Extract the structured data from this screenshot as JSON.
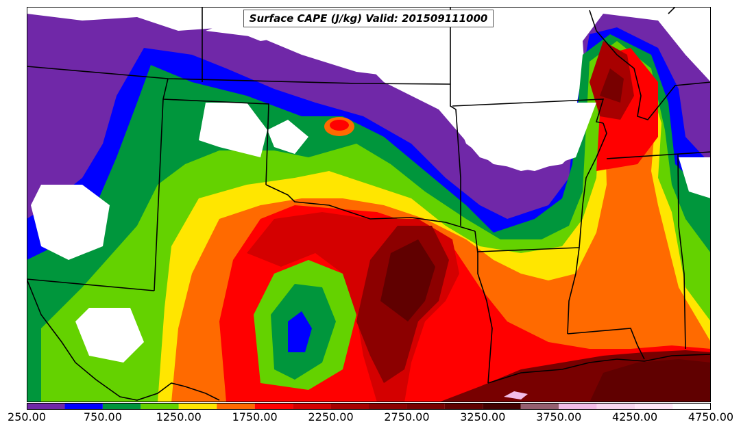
{
  "title": "Surface CAPE (J/kg) Valid: 201509111000",
  "colorbar": {
    "levels": [
      250,
      500,
      750,
      1000,
      1250,
      1500,
      1750,
      2000,
      2250,
      2500,
      2750,
      3000,
      3250,
      3500,
      3750,
      4000,
      4250,
      4500,
      4750
    ],
    "colors": [
      "#7028a8",
      "#0000ff",
      "#00963c",
      "#64d200",
      "#ffe600",
      "#ff6a00",
      "#ff0000",
      "#d40000",
      "#a80000",
      "#8c0000",
      "#780000",
      "#600000",
      "#420000",
      "#956070",
      "#f2bde8",
      "#f8d8f0",
      "#ffe8f8",
      "#ffffff"
    ],
    "tick_labels": [
      "250.00",
      "750.00",
      "1250.00",
      "1750.00",
      "2250.00",
      "2750.00",
      "3250.00",
      "3750.00",
      "4250.00",
      "4750.00"
    ]
  }
}
